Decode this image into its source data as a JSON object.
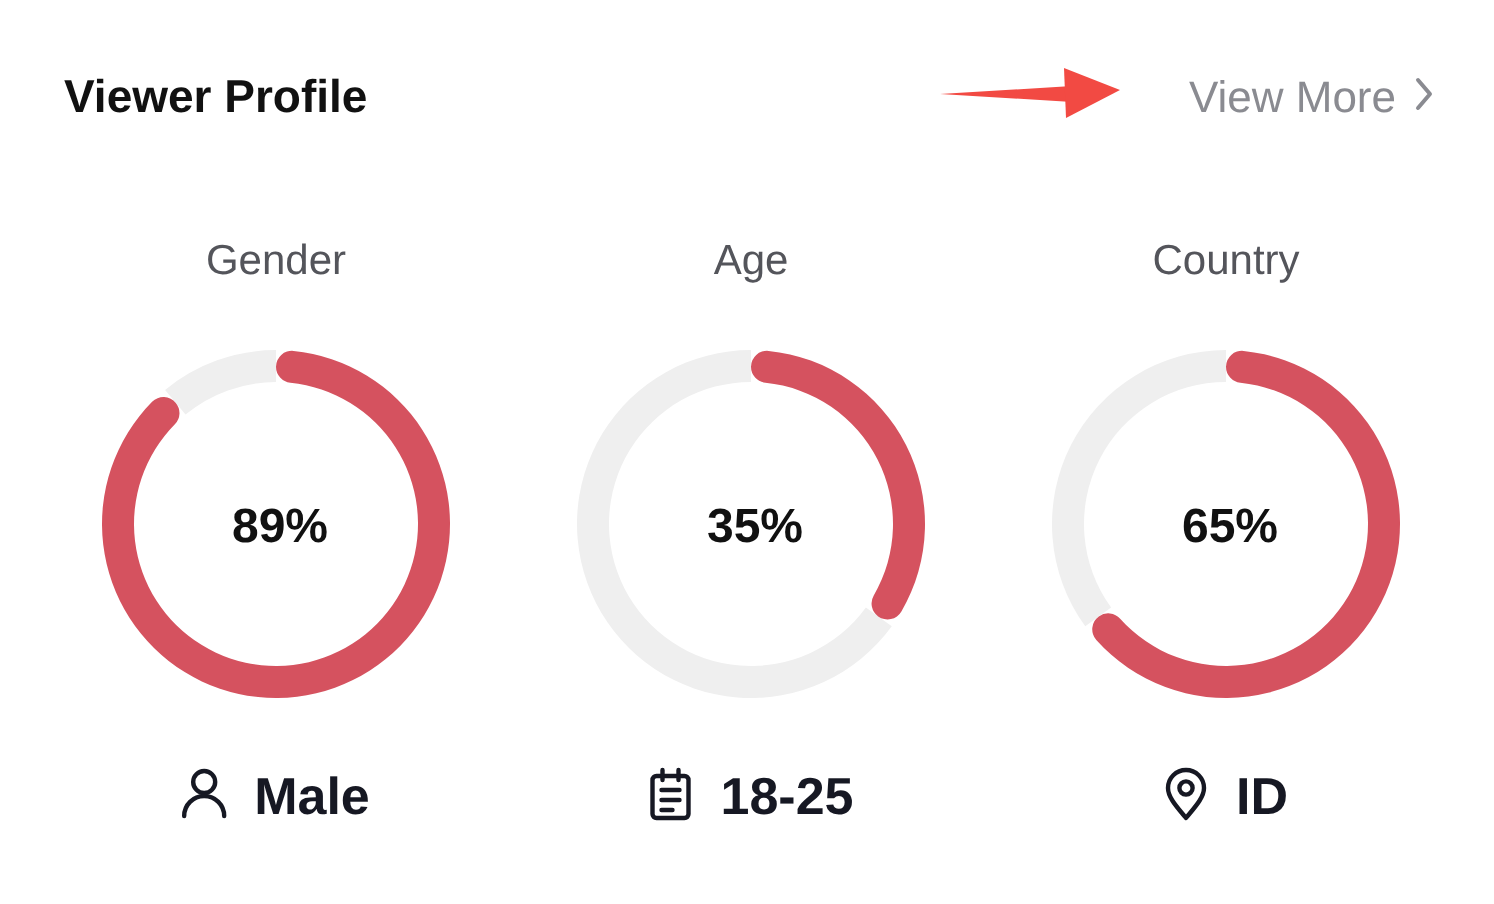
{
  "chart_data": [
    {
      "type": "other",
      "title": "Viewer Profile",
      "annotations": [
        "View More"
      ]
    },
    {
      "type": "donut",
      "title": "Gender",
      "categories": [
        null,
        null
      ],
      "values": [
        89,
        11
      ],
      "colors": [
        "#d5525f",
        "#efefef"
      ],
      "value_labels": [
        "89%",
        null
      ],
      "annotations": [
        "Male"
      ]
    },
    {
      "type": "donut",
      "title": "Age",
      "categories": [
        null,
        null
      ],
      "values": [
        35,
        65
      ],
      "colors": [
        "#d5525f",
        "#efefef"
      ],
      "value_labels": [
        "35%",
        null
      ],
      "annotations": [
        "18-25"
      ]
    },
    {
      "type": "donut",
      "title": "Country",
      "categories": [
        null,
        null
      ],
      "values": [
        65,
        35
      ],
      "colors": [
        "#d5525f",
        "#efefef"
      ],
      "value_labels": [
        "65%",
        null
      ],
      "annotations": [
        "ID"
      ]
    }
  ]
}
